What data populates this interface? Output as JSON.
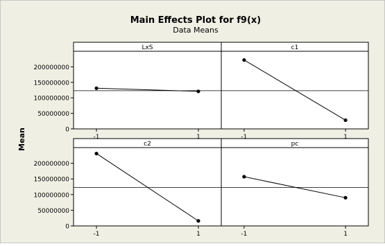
{
  "chart_data": {
    "type": "line",
    "title": "Main Effects Plot for f9(x)",
    "subtitle": "Data Means",
    "ylabel": "Mean",
    "ylim": [
      0,
      250000000
    ],
    "yticks": [
      0,
      50000000,
      100000000,
      150000000,
      200000000
    ],
    "ytick_labels": [
      "0",
      "50000000",
      "100000000",
      "150000000",
      "200000000"
    ],
    "x": [
      -1,
      1
    ],
    "xtick_labels": [
      "-1",
      "1"
    ],
    "reference_line": 123000000,
    "panels": [
      {
        "name": "LxS",
        "values": [
          131000000,
          121000000
        ]
      },
      {
        "name": "c1",
        "values": [
          222000000,
          28000000
        ]
      },
      {
        "name": "c2",
        "values": [
          231000000,
          16000000
        ]
      },
      {
        "name": "pc",
        "values": [
          157000000,
          90000000
        ]
      }
    ]
  },
  "colors": {
    "outer_background": "#f0efe3",
    "plot_background": "#ffffff",
    "line": "#000000"
  }
}
